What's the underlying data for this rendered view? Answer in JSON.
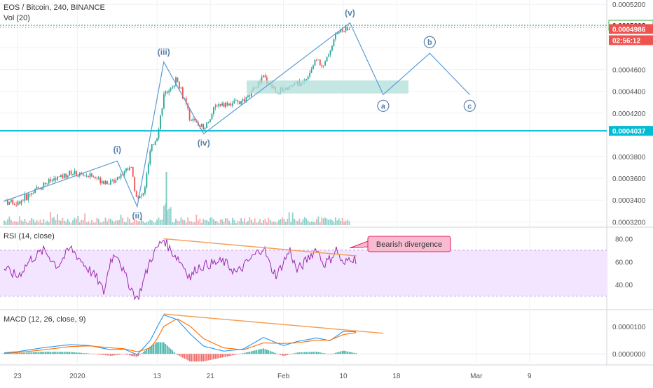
{
  "header": {
    "symbol_line": "EOS / Bitcoin, 240, BINANCE",
    "volume_label": "Vol (20)",
    "rsi_label": "RSI (14, close)",
    "macd_label": "MACD (12, 26, close, 9)"
  },
  "colors": {
    "up": "#26a69a",
    "down": "#ef5350",
    "wave": "#5b9bd5",
    "support": "#00bcd4",
    "target_zone": "#b2dfdb",
    "rsi_line": "#9c27b0",
    "rsi_band": "#f3e5ff",
    "divergence": "#f5a15a",
    "macd_line": "#2196f3",
    "signal_line": "#ff6d00",
    "annotation_bg": "#f8bbd0",
    "annotation_border": "#e91e63",
    "last_price_bg": "#ef5350",
    "support_label_bg": "#00bcd4"
  },
  "chart_data": [
    {
      "type": "candlestick",
      "title": "EOS / Bitcoin, 240, BINANCE",
      "x_tick_labels": [
        "23",
        "2020",
        "13",
        "21",
        "Feb",
        "10",
        "18",
        "Mar",
        "9"
      ],
      "y_tick_labels": [
        "0.0005200",
        "0.0005008",
        "0.0004986",
        "0.0004600",
        "0.0004400",
        "0.0004200",
        "0.0004037",
        "0.0003800",
        "0.0003600",
        "0.0003400",
        "0.0003200"
      ],
      "ylim": [
        0.000317,
        0.000524
      ],
      "price_path": [
        {
          "x": "Dec 21",
          "y": 0.000339
        },
        {
          "x": "Dec 23",
          "y": 0.000337
        },
        {
          "x": "Dec 27",
          "y": 0.000355
        },
        {
          "x": "Dec 31",
          "y": 0.000365
        },
        {
          "x": "Jan 3",
          "y": 0.000362
        },
        {
          "x": "Jan 6",
          "y": 0.000356
        },
        {
          "x": "Jan 9",
          "y": 0.000372
        },
        {
          "x": "Jan 10",
          "y": 0.00034
        },
        {
          "x": "Jan 11",
          "y": 0.000346
        },
        {
          "x": "Jan 12",
          "y": 0.000385
        },
        {
          "x": "Jan 13",
          "y": 0.000399
        },
        {
          "x": "Jan 14",
          "y": 0.000436
        },
        {
          "x": "Jan 16",
          "y": 0.000452
        },
        {
          "x": "Jan 18",
          "y": 0.000415
        },
        {
          "x": "Jan 20",
          "y": 0.000405
        },
        {
          "x": "Jan 22",
          "y": 0.000428
        },
        {
          "x": "Jan 26",
          "y": 0.00043
        },
        {
          "x": "Jan 29",
          "y": 0.000453
        },
        {
          "x": "Jan 31",
          "y": 0.00044
        },
        {
          "x": "Feb 2",
          "y": 0.000445
        },
        {
          "x": "Feb 4",
          "y": 0.000448
        },
        {
          "x": "Feb 6",
          "y": 0.00047
        },
        {
          "x": "Feb 7",
          "y": 0.000462
        },
        {
          "x": "Feb 9",
          "y": 0.000494
        },
        {
          "x": "Feb 11",
          "y": 0.000499
        }
      ],
      "current_price": 0.0004986,
      "current_price_label": "0.0004986",
      "countdown_label": "02:56:12",
      "dotted_line_label": "0.0005008",
      "dotted_line_price": 0.0005008,
      "support_level": 0.0004037,
      "support_label": "0.0004037",
      "target_zone": {
        "price_low": 0.000438,
        "price_high": 0.00045
      },
      "wave_labels": [
        "(i)",
        "(ii)",
        "(iii)",
        "(iv)",
        "(v)",
        "a",
        "b",
        "c"
      ],
      "wave_points": [
        {
          "label": "",
          "x": "Dec 21",
          "y": 0.000339
        },
        {
          "label": "(i)",
          "x": "Jan 7",
          "y": 0.000376
        },
        {
          "label": "(ii)",
          "x": "Jan 10",
          "y": 0.000334
        },
        {
          "label": "(iii)",
          "x": "Jan 14",
          "y": 0.000467
        },
        {
          "label": "(iv)",
          "x": "Jan 20",
          "y": 0.000401
        },
        {
          "label": "(v)",
          "x": "Feb 11",
          "y": 0.000503
        },
        {
          "label": "a",
          "x": "Feb 16",
          "y": 0.000437
        },
        {
          "label": "b",
          "x": "Feb 23",
          "y": 0.000475
        },
        {
          "label": "c",
          "x": "Feb 29",
          "y": 0.000437
        }
      ]
    },
    {
      "type": "bar",
      "title": "Vol (20)",
      "note": "volume histogram, colored by candle direction"
    },
    {
      "type": "line",
      "title": "RSI (14, close)",
      "y_tick_labels": [
        "80.00",
        "60.00",
        "40.00"
      ],
      "ylim": [
        20,
        87
      ],
      "band": [
        30,
        70
      ],
      "series": [
        {
          "values": [
            {
              "x": "Dec 21",
              "y": 54
            },
            {
              "x": "Dec 23",
              "y": 47
            },
            {
              "x": "Dec 25",
              "y": 62
            },
            {
              "x": "Dec 27",
              "y": 70
            },
            {
              "x": "Dec 29",
              "y": 56
            },
            {
              "x": "Dec 31",
              "y": 72
            },
            {
              "x": "Jan 2",
              "y": 58
            },
            {
              "x": "Jan 4",
              "y": 45
            },
            {
              "x": "Jan 5",
              "y": 33
            },
            {
              "x": "Jan 6",
              "y": 62
            },
            {
              "x": "Jan 7",
              "y": 68
            },
            {
              "x": "Jan 8",
              "y": 50
            },
            {
              "x": "Jan 9",
              "y": 38
            },
            {
              "x": "Jan 10",
              "y": 27
            },
            {
              "x": "Jan 11",
              "y": 44
            },
            {
              "x": "Jan 12",
              "y": 62
            },
            {
              "x": "Jan 13",
              "y": 72
            },
            {
              "x": "Jan 14",
              "y": 80
            },
            {
              "x": "Jan 15",
              "y": 70
            },
            {
              "x": "Jan 16",
              "y": 64
            },
            {
              "x": "Jan 17",
              "y": 56
            },
            {
              "x": "Jan 18",
              "y": 46
            },
            {
              "x": "Jan 19",
              "y": 55
            },
            {
              "x": "Jan 21",
              "y": 58
            },
            {
              "x": "Jan 23",
              "y": 60
            },
            {
              "x": "Jan 25",
              "y": 50
            },
            {
              "x": "Jan 27",
              "y": 62
            },
            {
              "x": "Jan 29",
              "y": 73
            },
            {
              "x": "Jan 30",
              "y": 56
            },
            {
              "x": "Jan 31",
              "y": 48
            },
            {
              "x": "Feb 1",
              "y": 60
            },
            {
              "x": "Feb 2",
              "y": 70
            },
            {
              "x": "Feb 3",
              "y": 52
            },
            {
              "x": "Feb 4",
              "y": 58
            },
            {
              "x": "Feb 5",
              "y": 65
            },
            {
              "x": "Feb 6",
              "y": 72
            },
            {
              "x": "Feb 7",
              "y": 58
            },
            {
              "x": "Feb 8",
              "y": 62
            },
            {
              "x": "Feb 9",
              "y": 71
            },
            {
              "x": "Feb 10",
              "y": 56
            },
            {
              "x": "Feb 11",
              "y": 64
            },
            {
              "x": "Feb 12",
              "y": 62
            }
          ]
        }
      ],
      "annotation": "Bearish divergence",
      "divergence_line": [
        {
          "x": "Jan 14",
          "y": 80
        },
        {
          "x": "Feb 12",
          "y": 65
        }
      ]
    },
    {
      "type": "line",
      "title": "MACD (12, 26, close, 9)",
      "y_tick_labels": [
        "0.0000100",
        "0.0000000"
      ],
      "ylim": [
        -3.5e-06,
        1.48e-05
      ],
      "series": [
        {
          "values": [
            {
              "x": "Dec 21",
              "y": 4e-07
            },
            {
              "x": "Dec 23",
              "y": 8e-07
            },
            {
              "x": "Dec 27",
              "y": 2.3e-06
            },
            {
              "x": "Dec 31",
              "y": 3.4e-06
            },
            {
              "x": "Jan 3",
              "y": 3e-06
            },
            {
              "x": "Jan 6",
              "y": 1.5e-06
            },
            {
              "x": "Jan 8",
              "y": 1.8e-06
            },
            {
              "x": "Jan 10",
              "y": -3e-07
            },
            {
              "x": "Jan 12",
              "y": 5e-06
            },
            {
              "x": "Jan 13",
              "y": 9.8e-06
            },
            {
              "x": "Jan 14",
              "y": 1.42e-05
            },
            {
              "x": "Jan 16",
              "y": 1.25e-05
            },
            {
              "x": "Jan 18",
              "y": 7.2e-06
            },
            {
              "x": "Jan 20",
              "y": 2.8e-06
            },
            {
              "x": "Jan 23",
              "y": 1e-06
            },
            {
              "x": "Jan 26",
              "y": 1.8e-06
            },
            {
              "x": "Jan 29",
              "y": 6e-06
            },
            {
              "x": "Feb 1",
              "y": 3e-06
            },
            {
              "x": "Feb 3",
              "y": 4.5e-06
            },
            {
              "x": "Feb 6",
              "y": 5.8e-06
            },
            {
              "x": "Feb 8",
              "y": 4.8e-06
            },
            {
              "x": "Feb 10",
              "y": 8.2e-06
            },
            {
              "x": "Feb 12",
              "y": 8e-06
            }
          ]
        },
        {
          "values": [
            {
              "x": "Dec 21",
              "y": 2e-07
            },
            {
              "x": "Dec 23",
              "y": 5e-07
            },
            {
              "x": "Dec 27",
              "y": 1.5e-06
            },
            {
              "x": "Dec 31",
              "y": 2.7e-06
            },
            {
              "x": "Jan 3",
              "y": 2.9e-06
            },
            {
              "x": "Jan 6",
              "y": 2.2e-06
            },
            {
              "x": "Jan 8",
              "y": 1.9e-06
            },
            {
              "x": "Jan 10",
              "y": 8e-07
            },
            {
              "x": "Jan 12",
              "y": 2.2e-06
            },
            {
              "x": "Jan 13",
              "y": 5.5e-06
            },
            {
              "x": "Jan 14",
              "y": 1e-05
            },
            {
              "x": "Jan 16",
              "y": 1.28e-05
            },
            {
              "x": "Jan 18",
              "y": 1e-05
            },
            {
              "x": "Jan 20",
              "y": 5.5e-06
            },
            {
              "x": "Jan 23",
              "y": 2.2e-06
            },
            {
              "x": "Jan 26",
              "y": 1.5e-06
            },
            {
              "x": "Jan 29",
              "y": 4e-06
            },
            {
              "x": "Feb 1",
              "y": 3.8e-06
            },
            {
              "x": "Feb 3",
              "y": 4e-06
            },
            {
              "x": "Feb 6",
              "y": 5e-06
            },
            {
              "x": "Feb 8",
              "y": 5e-06
            },
            {
              "x": "Feb 10",
              "y": 7e-06
            },
            {
              "x": "Feb 12",
              "y": 7.8e-06
            }
          ]
        }
      ],
      "divergence_line": [
        {
          "x": "Jan 14",
          "y": 1.45e-05
        },
        {
          "x": "Feb 16",
          "y": 7.5e-06
        }
      ]
    }
  ]
}
